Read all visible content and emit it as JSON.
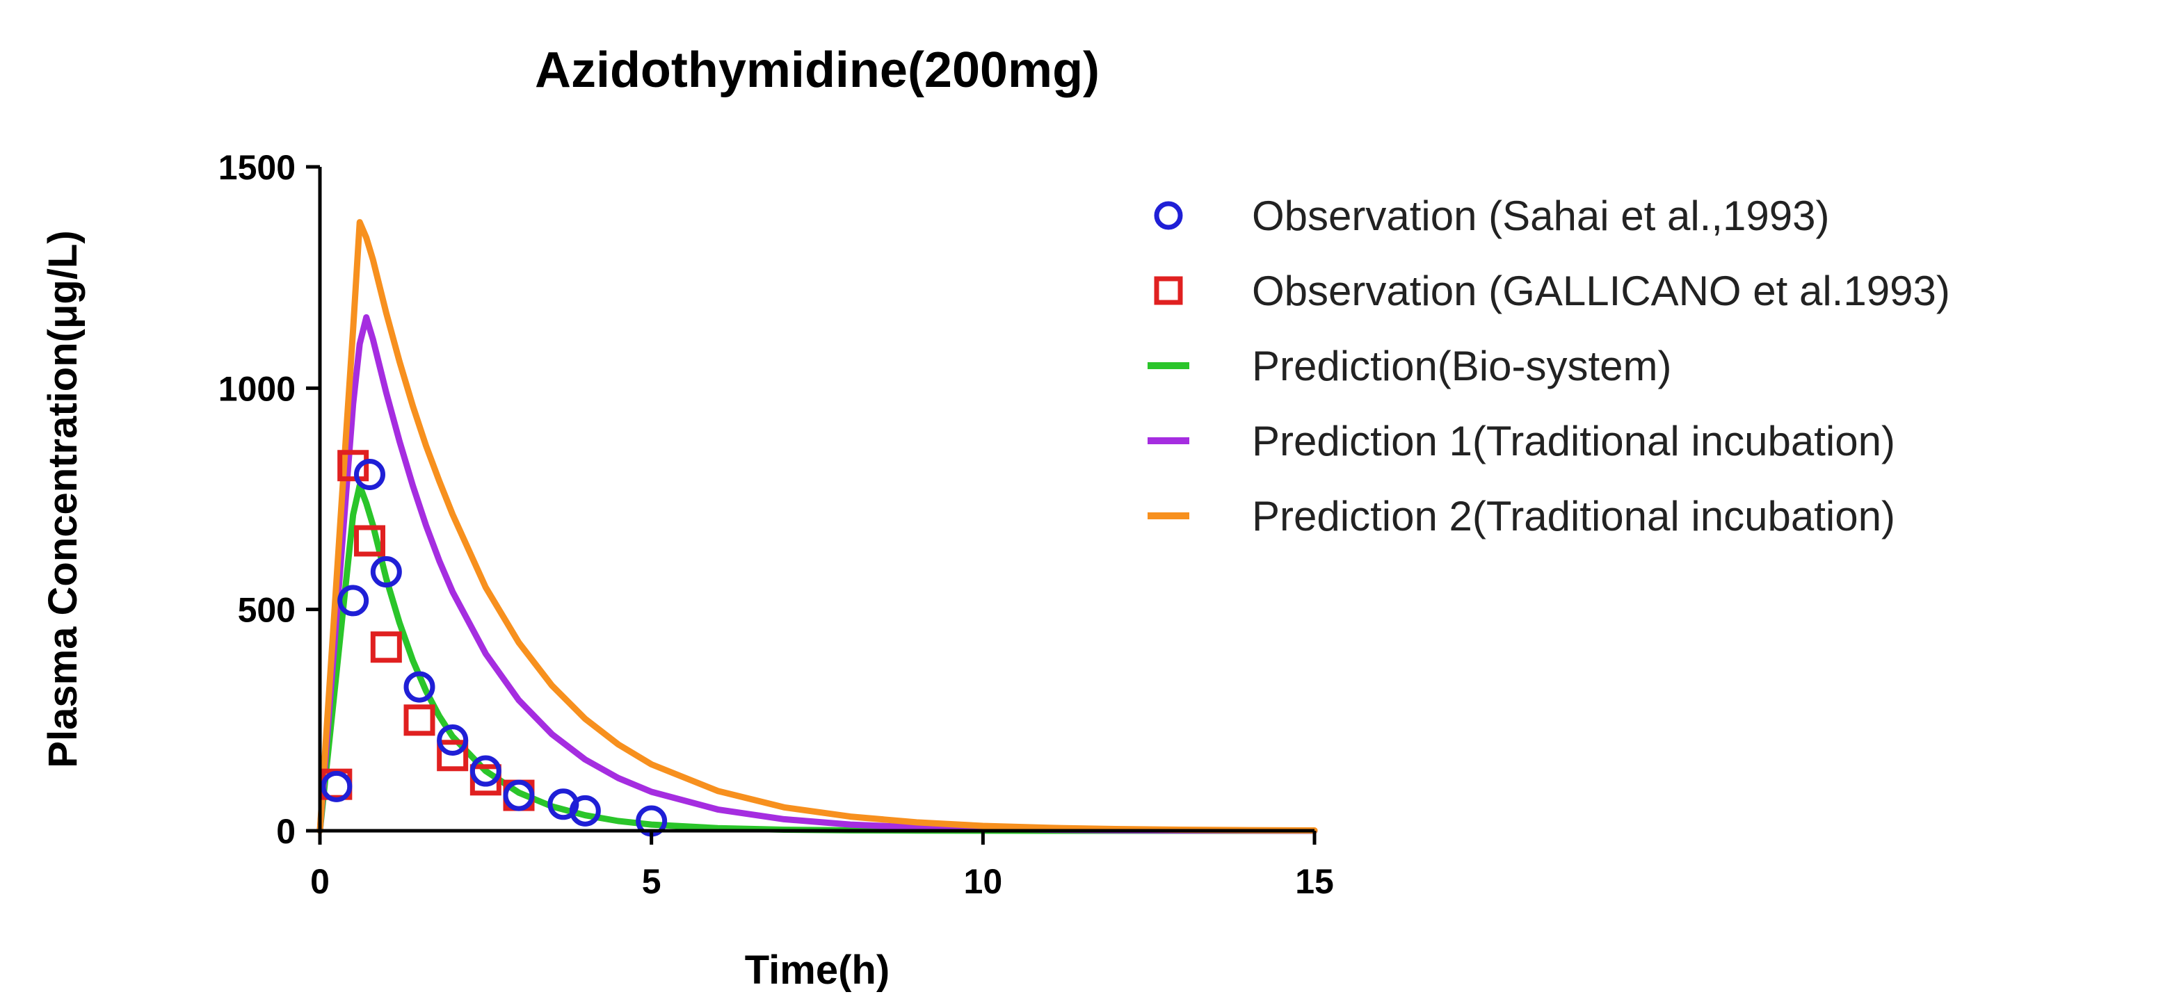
{
  "chart_data": {
    "type": "scatter",
    "title": "Azidothymidine(200mg)",
    "xlabel": "Time(h)",
    "ylabel": "Plasma Concentration(μg/L)",
    "xlim": [
      0,
      15
    ],
    "ylim": [
      0,
      1500
    ],
    "xticks": [
      0,
      5,
      10,
      15
    ],
    "yticks": [
      0,
      500,
      1000,
      1500
    ],
    "grid": false,
    "legend_position": "right",
    "series": [
      {
        "name": "Observation (Sahai et al.,1993)",
        "kind": "scatter",
        "marker": "circle",
        "color": "#1f1fd6",
        "x": [
          0.25,
          0.5,
          0.75,
          1.0,
          1.5,
          2.0,
          2.5,
          3.0,
          3.67,
          4.0,
          5.0
        ],
        "y": [
          100,
          520,
          805,
          585,
          325,
          205,
          135,
          80,
          60,
          45,
          22
        ]
      },
      {
        "name": "Observation (GALLICANO et al.1993)",
        "kind": "scatter",
        "marker": "square",
        "color": "#e02020",
        "x": [
          0.25,
          0.5,
          0.75,
          1.0,
          1.5,
          2.0,
          2.5,
          3.0
        ],
        "y": [
          105,
          825,
          655,
          415,
          250,
          170,
          115,
          80
        ]
      },
      {
        "name": "Prediction(Bio-system)",
        "kind": "line",
        "color": "#2ac52a",
        "x": [
          0,
          0.1,
          0.2,
          0.3,
          0.4,
          0.5,
          0.6,
          0.7,
          0.8,
          0.9,
          1.0,
          1.2,
          1.4,
          1.6,
          1.8,
          2.0,
          2.5,
          3.0,
          3.5,
          4.0,
          4.5,
          5.0,
          6.0,
          7.0,
          8.0,
          9.0,
          10.0,
          11.0,
          12.0,
          13.0,
          14.0,
          15.0
        ],
        "y": [
          0,
          143,
          286,
          429,
          571,
          714,
          780,
          740,
          690,
          630,
          570,
          470,
          385,
          316,
          259,
          213,
          135,
          86,
          55,
          35,
          22,
          14,
          6,
          2.3,
          1.0,
          0.4,
          0.15,
          0.06,
          0.02,
          0.01,
          0,
          0
        ]
      },
      {
        "name": "Prediction 1(Traditional incubation)",
        "kind": "line",
        "color": "#a52de0",
        "x": [
          0,
          0.1,
          0.2,
          0.3,
          0.4,
          0.5,
          0.6,
          0.7,
          0.8,
          0.9,
          1.0,
          1.2,
          1.4,
          1.6,
          1.8,
          2.0,
          2.5,
          3.0,
          3.5,
          4.0,
          4.5,
          5.0,
          6.0,
          7.0,
          8.0,
          9.0,
          10.0,
          11.0,
          12.0,
          13.0,
          14.0,
          15.0
        ],
        "y": [
          0,
          193,
          386,
          579,
          771,
          964,
          1100,
          1160,
          1110,
          1050,
          990,
          880,
          780,
          690,
          610,
          540,
          400,
          295,
          218,
          161,
          119,
          88,
          48,
          26,
          14,
          7.7,
          4.2,
          2.3,
          1.3,
          0.7,
          0.4,
          0.2
        ]
      },
      {
        "name": "Prediction 2(Traditional incubation)",
        "kind": "line",
        "color": "#f7901e",
        "x": [
          0,
          0.1,
          0.2,
          0.3,
          0.4,
          0.5,
          0.6,
          0.7,
          0.8,
          0.9,
          1.0,
          1.2,
          1.4,
          1.6,
          1.8,
          2.0,
          2.5,
          3.0,
          3.5,
          4.0,
          4.5,
          5.0,
          6.0,
          7.0,
          8.0,
          9.0,
          10.0,
          11.0,
          12.0,
          13.0,
          14.0,
          15.0
        ],
        "y": [
          0,
          227,
          453,
          680,
          907,
          1133,
          1375,
          1340,
          1290,
          1230,
          1170,
          1060,
          960,
          870,
          790,
          715,
          550,
          425,
          328,
          253,
          195,
          150,
          90,
          53,
          32,
          19,
          11,
          6.6,
          3.9,
          2.3,
          1.4,
          0.8
        ]
      }
    ]
  }
}
